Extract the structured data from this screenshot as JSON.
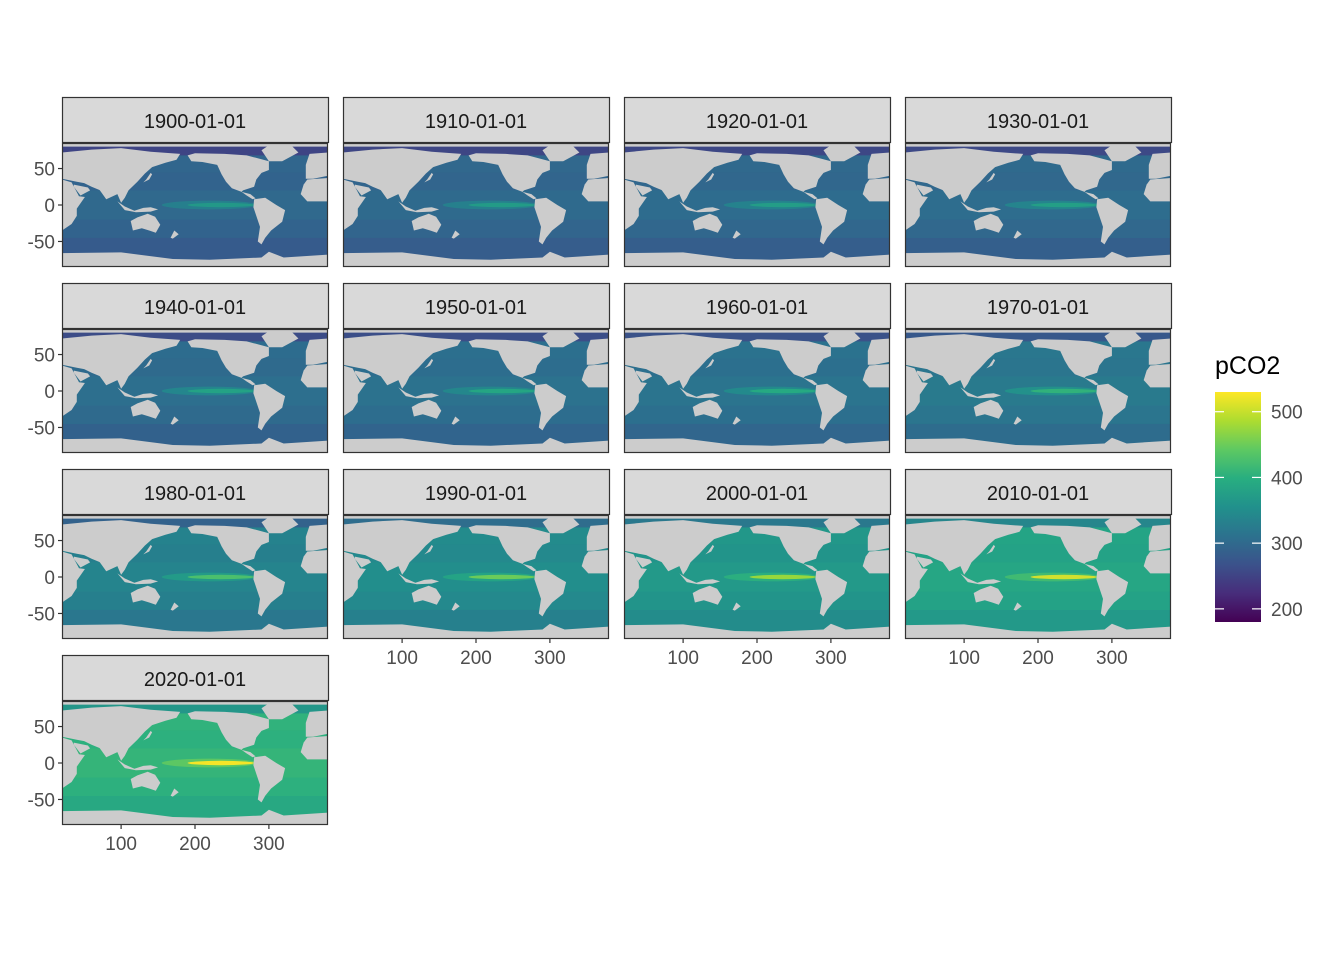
{
  "chart_data": {
    "type": "heatmap",
    "title": "",
    "xlabel": "",
    "ylabel": "",
    "facet_by": "time",
    "facets": [
      {
        "label": "1900-01-01",
        "mean_pco2": 300
      },
      {
        "label": "1910-01-01",
        "mean_pco2": 302
      },
      {
        "label": "1920-01-01",
        "mean_pco2": 304
      },
      {
        "label": "1930-01-01",
        "mean_pco2": 306
      },
      {
        "label": "1940-01-01",
        "mean_pco2": 309
      },
      {
        "label": "1950-01-01",
        "mean_pco2": 312
      },
      {
        "label": "1960-01-01",
        "mean_pco2": 316
      },
      {
        "label": "1970-01-01",
        "mean_pco2": 324
      },
      {
        "label": "1980-01-01",
        "mean_pco2": 338
      },
      {
        "label": "1990-01-01",
        "mean_pco2": 352
      },
      {
        "label": "2000-01-01",
        "mean_pco2": 368
      },
      {
        "label": "2010-01-01",
        "mean_pco2": 388
      },
      {
        "label": "2020-01-01",
        "mean_pco2": 410
      }
    ],
    "x_axis": {
      "range": [
        20,
        380
      ],
      "ticks": [
        100,
        200,
        300
      ],
      "tick_labels": [
        "100",
        "200",
        "300"
      ]
    },
    "y_axis": {
      "range": [
        -85,
        85
      ],
      "ticks": [
        50,
        0,
        -50
      ],
      "tick_labels": [
        "50",
        "0",
        "-50"
      ]
    },
    "fill": {
      "name": "pCO2",
      "colormap": "viridis",
      "range": [
        180,
        530
      ],
      "breaks": [
        500,
        400,
        300,
        200
      ],
      "break_labels": [
        "500",
        "400",
        "300",
        "200"
      ]
    },
    "land_color": "#cccccc",
    "strip_fill": "#d9d9d9",
    "panel_border": "#333333",
    "grid": false,
    "legend_position": "right"
  }
}
